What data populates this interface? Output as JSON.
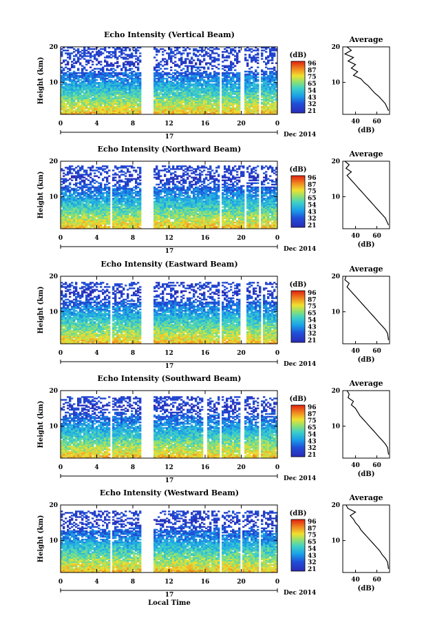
{
  "figure": {
    "x_axis_title": "Local Time",
    "date_label": "Dec 2014",
    "day_label": "17"
  },
  "chart_data": [
    {
      "type": "heatmap",
      "title": "Echo Intensity (Vertical Beam)",
      "ylabel": "Height (km)",
      "x_ticks": [
        "0",
        "4",
        "8",
        "12",
        "16",
        "20",
        "0"
      ],
      "xlim": [
        0,
        24
      ],
      "y_ticks": [
        "20",
        "10"
      ],
      "ylim": [
        1,
        20
      ],
      "colorbar_label": "(dB)",
      "colorbar_ticks": [
        "96",
        "87",
        "75",
        "65",
        "54",
        "43",
        "32",
        "21"
      ],
      "gaps_hours": [
        [
          8.8,
          10.2
        ],
        [
          17.6,
          17.9
        ],
        [
          20.0,
          20.4
        ],
        [
          22.0,
          22.2
        ]
      ],
      "valid_top_km": 20
    },
    {
      "type": "heatmap",
      "title": "Echo Intensity (Northward Beam)",
      "ylabel": "Height (km)",
      "x_ticks": [
        "0",
        "4",
        "8",
        "12",
        "16",
        "20",
        "0"
      ],
      "xlim": [
        0,
        24
      ],
      "y_ticks": [
        "20",
        "10"
      ],
      "ylim": [
        1,
        20
      ],
      "colorbar_label": "(dB)",
      "colorbar_ticks": [
        "96",
        "87",
        "75",
        "65",
        "54",
        "43",
        "32",
        "21"
      ],
      "gaps_hours": [
        [
          5.6,
          5.8
        ],
        [
          8.8,
          10.2
        ],
        [
          17.6,
          17.9
        ],
        [
          20.3,
          20.5
        ],
        [
          22.0,
          22.2
        ]
      ],
      "valid_top_km": 19
    },
    {
      "type": "heatmap",
      "title": "Echo Intensity (Eastward Beam)",
      "ylabel": "Height (km)",
      "x_ticks": [
        "0",
        "4",
        "8",
        "12",
        "16",
        "20",
        "0"
      ],
      "xlim": [
        0,
        24
      ],
      "y_ticks": [
        "20",
        "10"
      ],
      "ylim": [
        1,
        20
      ],
      "colorbar_label": "(dB)",
      "colorbar_ticks": [
        "96",
        "87",
        "75",
        "65",
        "54",
        "43",
        "32",
        "21"
      ],
      "gaps_hours": [
        [
          5.6,
          5.8
        ],
        [
          8.8,
          10.2
        ],
        [
          17.6,
          17.9
        ],
        [
          20.0,
          20.5
        ],
        [
          22.2,
          22.4
        ]
      ],
      "valid_top_km": 18.5
    },
    {
      "type": "heatmap",
      "title": "Echo Intensity (Southward Beam)",
      "ylabel": "Height (km)",
      "x_ticks": [
        "0",
        "4",
        "8",
        "12",
        "16",
        "20",
        "0"
      ],
      "xlim": [
        0,
        24
      ],
      "y_ticks": [
        "20",
        "10"
      ],
      "ylim": [
        1,
        20
      ],
      "colorbar_label": "(dB)",
      "colorbar_ticks": [
        "96",
        "87",
        "75",
        "65",
        "54",
        "43",
        "32",
        "21"
      ],
      "gaps_hours": [
        [
          5.6,
          5.8
        ],
        [
          8.8,
          10.2
        ],
        [
          15.8,
          16.3
        ],
        [
          17.6,
          17.9
        ],
        [
          20.0,
          20.3
        ],
        [
          22.0,
          22.2
        ]
      ],
      "valid_top_km": 18.5
    },
    {
      "type": "heatmap",
      "title": "Echo Intensity (Westward Beam)",
      "ylabel": "Height (km)",
      "x_ticks": [
        "0",
        "4",
        "8",
        "12",
        "16",
        "20",
        "0"
      ],
      "xlim": [
        0,
        24
      ],
      "y_ticks": [
        "20",
        "10"
      ],
      "ylim": [
        1,
        20
      ],
      "colorbar_label": "(dB)",
      "colorbar_ticks": [
        "96",
        "87",
        "75",
        "65",
        "54",
        "43",
        "32",
        "21"
      ],
      "gaps_hours": [
        [
          5.6,
          5.8
        ],
        [
          8.8,
          10.2
        ],
        [
          17.6,
          17.9
        ],
        [
          20.0,
          20.2
        ],
        [
          22.0,
          22.2
        ]
      ],
      "valid_top_km": 18.5
    },
    {
      "type": "line",
      "title": "Average",
      "xlabel": "(dB)",
      "x_ticks": [
        "40",
        "60"
      ],
      "y_ticks": [
        "20",
        "10"
      ],
      "xlim": [
        28,
        72
      ],
      "ylim": [
        1,
        20
      ],
      "series": [
        {
          "x": [
            32,
            36,
            30,
            38,
            33,
            40,
            36,
            42,
            38,
            45,
            48,
            52,
            55,
            58,
            62,
            65,
            68,
            71
          ],
          "y": [
            20,
            19,
            18,
            17,
            16,
            15,
            14,
            13,
            12,
            11,
            10,
            9,
            8,
            7,
            6,
            5,
            4,
            2
          ]
        }
      ]
    },
    {
      "type": "line",
      "title": "Average",
      "xlabel": "(dB)",
      "x_ticks": [
        "40",
        "60"
      ],
      "y_ticks": [
        "20",
        "10"
      ],
      "xlim": [
        28,
        72
      ],
      "ylim": [
        1,
        20
      ],
      "series": [
        {
          "x": [
            30,
            34,
            31,
            36,
            32,
            35,
            38,
            41,
            44,
            47,
            50,
            53,
            56,
            59,
            62,
            65,
            68,
            71
          ],
          "y": [
            20,
            19,
            18,
            17,
            16,
            15,
            14,
            13,
            12,
            11,
            10,
            9,
            8,
            7,
            6,
            5,
            4,
            2
          ]
        }
      ]
    },
    {
      "type": "line",
      "title": "Average",
      "xlabel": "(dB)",
      "x_ticks": [
        "40",
        "60"
      ],
      "y_ticks": [
        "20",
        "10"
      ],
      "xlim": [
        28,
        72
      ],
      "ylim": [
        1,
        20
      ],
      "series": [
        {
          "x": [
            31,
            30,
            34,
            32,
            35,
            38,
            41,
            44,
            47,
            50,
            53,
            56,
            59,
            62,
            65,
            68,
            70,
            71
          ],
          "y": [
            20,
            19,
            18,
            17,
            16,
            15,
            14,
            13,
            12,
            11,
            10,
            9,
            8,
            7,
            6,
            5,
            4,
            2
          ]
        }
      ]
    },
    {
      "type": "line",
      "title": "Average",
      "xlabel": "(dB)",
      "x_ticks": [
        "40",
        "60"
      ],
      "y_ticks": [
        "20",
        "10"
      ],
      "xlim": [
        28,
        72
      ],
      "ylim": [
        1,
        20
      ],
      "series": [
        {
          "x": [
            32,
            34,
            33,
            38,
            36,
            40,
            42,
            44,
            47,
            50,
            53,
            56,
            59,
            62,
            65,
            68,
            70,
            71
          ],
          "y": [
            20,
            19,
            18,
            17,
            16,
            15,
            14,
            13,
            12,
            11,
            10,
            9,
            8,
            7,
            6,
            5,
            4,
            2
          ]
        }
      ]
    },
    {
      "type": "line",
      "title": "Average",
      "xlabel": "(dB)",
      "x_ticks": [
        "40",
        "60"
      ],
      "y_ticks": [
        "20",
        "10"
      ],
      "xlim": [
        28,
        72
      ],
      "ylim": [
        1,
        20
      ],
      "series": [
        {
          "x": [
            31,
            33,
            40,
            35,
            38,
            40,
            43,
            45,
            48,
            51,
            54,
            57,
            60,
            63,
            65,
            68,
            70,
            71
          ],
          "y": [
            20,
            19,
            18,
            17,
            16,
            15,
            14,
            13,
            12,
            11,
            10,
            9,
            8,
            7,
            6,
            5,
            4,
            2
          ]
        }
      ]
    }
  ]
}
